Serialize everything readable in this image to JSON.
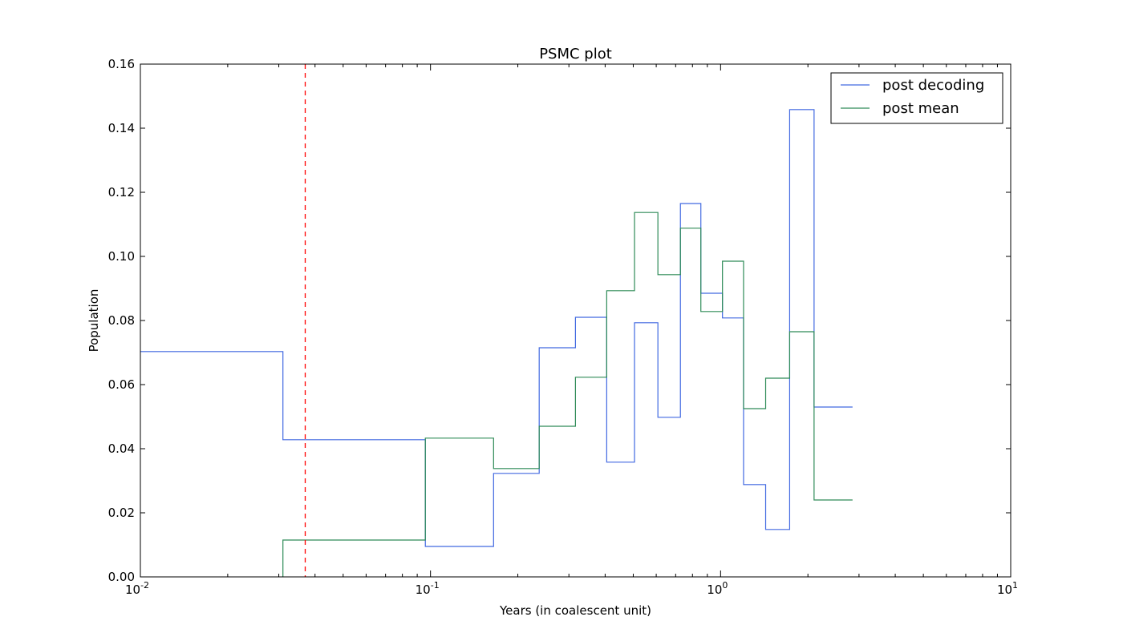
{
  "chart_data": {
    "type": "line",
    "title": "PSMC plot",
    "xlabel": "Years (in coalescent unit)",
    "ylabel": "Population",
    "xscale": "log",
    "xlim": [
      0.01,
      10
    ],
    "ylim": [
      0,
      0.16
    ],
    "x_ticks": [
      {
        "value": 0.01,
        "base": "10",
        "exp": "-2"
      },
      {
        "value": 0.1,
        "base": "10",
        "exp": "-1"
      },
      {
        "value": 1,
        "base": "10",
        "exp": "0"
      },
      {
        "value": 10,
        "base": "10",
        "exp": "1"
      }
    ],
    "y_ticks": [
      {
        "value": 0,
        "label": "0.00"
      },
      {
        "value": 0.02,
        "label": "0.02"
      },
      {
        "value": 0.04,
        "label": "0.04"
      },
      {
        "value": 0.06,
        "label": "0.06"
      },
      {
        "value": 0.08,
        "label": "0.08"
      },
      {
        "value": 0.1,
        "label": "0.10"
      },
      {
        "value": 0.12,
        "label": "0.12"
      },
      {
        "value": 0.14,
        "label": "0.14"
      },
      {
        "value": 0.16,
        "label": "0.16"
      }
    ],
    "grid": false,
    "legend_position": "top-right",
    "vline": {
      "x": 0.037,
      "color": "#ff0000",
      "style": "dashed"
    },
    "series": [
      {
        "name": "post decoding",
        "color": "#4169e1",
        "x": [
          0.01,
          0.031,
          0.096,
          0.165,
          0.237,
          0.316,
          0.405,
          0.505,
          0.608,
          0.727,
          0.855,
          1.015,
          1.2,
          1.43,
          1.73,
          2.1,
          2.85
        ],
        "y": [
          0.0703,
          0.0428,
          0.0095,
          0.0323,
          0.0715,
          0.081,
          0.0358,
          0.0793,
          0.0498,
          0.1165,
          0.0885,
          0.0808,
          0.0288,
          0.0148,
          0.1458,
          0.053,
          0.053
        ]
      },
      {
        "name": "post mean",
        "color": "#2e8b57",
        "x": [
          0.031,
          0.096,
          0.165,
          0.237,
          0.316,
          0.405,
          0.505,
          0.608,
          0.727,
          0.855,
          1.015,
          1.2,
          1.43,
          1.73,
          2.1,
          2.85
        ],
        "y": [
          0.0115,
          0.0433,
          0.0338,
          0.047,
          0.0623,
          0.0893,
          0.1137,
          0.0943,
          0.1088,
          0.0828,
          0.0985,
          0.0525,
          0.062,
          0.0765,
          0.024,
          0.024
        ],
        "start_from_zero": true
      }
    ]
  }
}
